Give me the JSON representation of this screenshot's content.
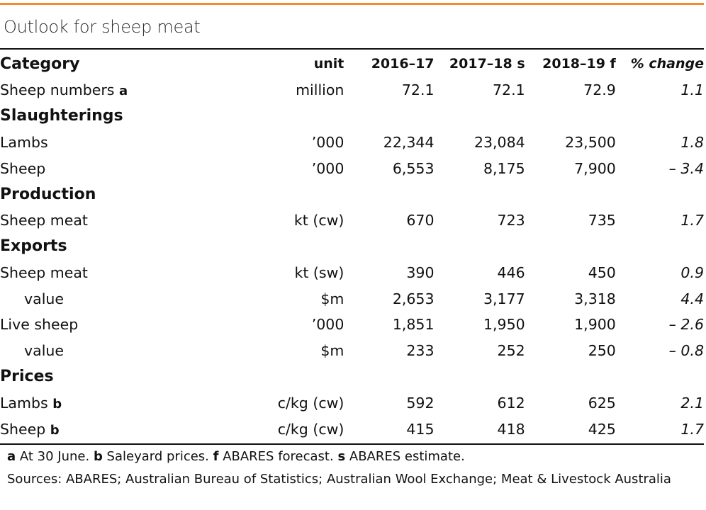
{
  "title": "Outlook for sheep meat",
  "header": {
    "category": "Category",
    "unit": "unit",
    "y1": "2016–17",
    "y2": "2017–18 s",
    "y3": "2018–19 f",
    "pct": "% change"
  },
  "rows": [
    {
      "label": "Sheep numbers",
      "note": "a",
      "unit": "million",
      "y1": "72.1",
      "y2": "72.1",
      "y3": "72.9",
      "pct": "1.1"
    },
    {
      "label": "Slaughterings",
      "section": true
    },
    {
      "label": "Lambs",
      "unit": "’000",
      "y1": "22,344",
      "y2": "23,084",
      "y3": "23,500",
      "pct": "1.8"
    },
    {
      "label": "Sheep",
      "unit": "’000",
      "y1": "6,553",
      "y2": "8,175",
      "y3": "7,900",
      "pct": "– 3.4"
    },
    {
      "label": "Production",
      "section": true
    },
    {
      "label": "Sheep meat",
      "unit": "kt (cw)",
      "y1": "670",
      "y2": "723",
      "y3": "735",
      "pct": "1.7"
    },
    {
      "label": "Exports",
      "section": true
    },
    {
      "label": "Sheep meat",
      "unit": "kt (sw)",
      "y1": "390",
      "y2": "446",
      "y3": "450",
      "pct": "0.9"
    },
    {
      "label": "value",
      "sub": true,
      "unit": "$m",
      "y1": "2,653",
      "y2": "3,177",
      "y3": "3,318",
      "pct": "4.4"
    },
    {
      "label": "Live sheep",
      "unit": "’000",
      "y1": "1,851",
      "y2": "1,950",
      "y3": "1,900",
      "pct": "– 2.6"
    },
    {
      "label": "value",
      "sub": true,
      "unit": "$m",
      "y1": "233",
      "y2": "252",
      "y3": "250",
      "pct": "– 0.8"
    },
    {
      "label": "Prices",
      "section": true
    },
    {
      "label": "Lambs",
      "note": "b",
      "unit": "c/kg (cw)",
      "y1": "592",
      "y2": "612",
      "y3": "625",
      "pct": "2.1"
    },
    {
      "label": "Sheep",
      "note": "b",
      "unit": "c/kg (cw)",
      "y1": "415",
      "y2": "418",
      "y3": "425",
      "pct": "1.7"
    }
  ],
  "footnotes": {
    "line1": [
      {
        "key": "a",
        "text": " At 30 June. "
      },
      {
        "key": "b",
        "text": " Saleyard prices. "
      },
      {
        "key": "f",
        "text": " ABARES forecast. "
      },
      {
        "key": "s",
        "text": " ABARES estimate."
      }
    ],
    "sources": "Sources: ABARES; Australian Bureau of Statistics; Australian Wool Exchange; Meat & Livestock Australia"
  },
  "colors": {
    "accent_bar": "#ef8d2f",
    "rule": "#111111",
    "text": "#111111"
  }
}
